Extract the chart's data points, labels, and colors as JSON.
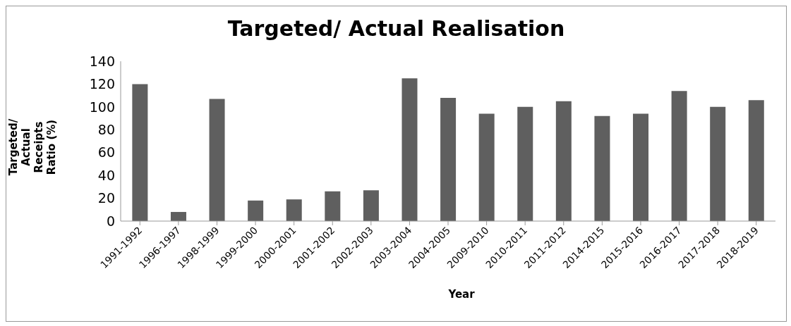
{
  "chart_data": {
    "type": "bar",
    "title": "Targeted/ Actual Realisation",
    "xlabel": "Year",
    "ylabel": "Targeted/ Actual Receipts Ratio (%)",
    "categories": [
      "1991-1992",
      "1996-1997",
      "1998-1999",
      "1999-2000",
      "2000-2001",
      "2001-2002",
      "2002-2003",
      "2003-2004",
      "2004-2005",
      "2009-2010",
      "2010-2011",
      "2011-2012",
      "2014-2015",
      "2015-2016",
      "2016-2017",
      "2017-2018",
      "2018-2019"
    ],
    "values": [
      120,
      8,
      107,
      18,
      19,
      26,
      27,
      125,
      108,
      94,
      100,
      105,
      92,
      94,
      114,
      100,
      106
    ],
    "color": "#5f5f5f",
    "ylim": [
      0,
      140
    ],
    "yticks": [
      0,
      20,
      40,
      60,
      80,
      100,
      120,
      140
    ],
    "grid": false,
    "legend": false
  }
}
